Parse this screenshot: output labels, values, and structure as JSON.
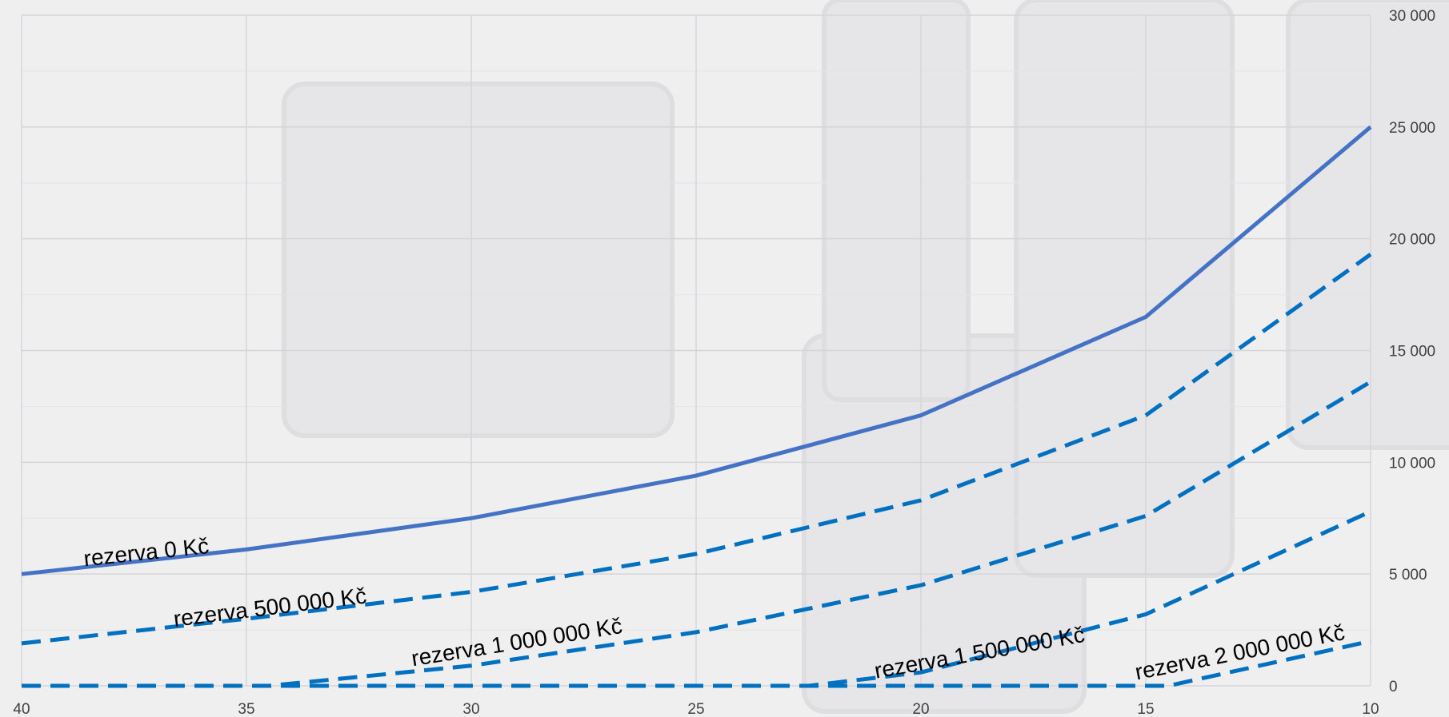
{
  "chart_data": {
    "type": "line",
    "x": [
      40,
      35,
      30,
      25,
      20,
      15,
      10
    ],
    "xlim": [
      40,
      10
    ],
    "x_reversed": true,
    "ylim": [
      0,
      30000
    ],
    "y_ticks": [
      0,
      5000,
      10000,
      15000,
      20000,
      25000,
      30000
    ],
    "y_tick_labels": [
      "0",
      "5 000",
      "10 000",
      "15 000",
      "20 000",
      "25 000",
      "30 000"
    ],
    "x_tick_labels": [
      "40",
      "35",
      "30",
      "25",
      "20",
      "15",
      "10"
    ],
    "y_axis_position": "right",
    "grid": true,
    "legend": "none",
    "series": [
      {
        "name": "rezerva 0 Kč",
        "style": "solid",
        "color": "#4472c4",
        "points": [
          [
            40,
            5000
          ],
          [
            35,
            6100
          ],
          [
            30,
            7500
          ],
          [
            25,
            9400
          ],
          [
            20,
            12100
          ],
          [
            15,
            16500
          ],
          [
            10,
            25000
          ]
        ]
      },
      {
        "name": "rezerva 500 000 Kč",
        "style": "dashed",
        "color": "#0070c0",
        "points": [
          [
            40,
            1900
          ],
          [
            35,
            3000
          ],
          [
            30,
            4200
          ],
          [
            25,
            5900
          ],
          [
            20,
            8300
          ],
          [
            15,
            12100
          ],
          [
            10,
            19300
          ]
        ]
      },
      {
        "name": "rezerva 1 000 000 Kč",
        "style": "dashed",
        "color": "#0070c0",
        "points": [
          [
            40,
            0
          ],
          [
            34.5,
            0
          ],
          [
            30,
            900
          ],
          [
            25,
            2400
          ],
          [
            20,
            4500
          ],
          [
            15,
            7600
          ],
          [
            10,
            13600
          ]
        ]
      },
      {
        "name": "rezerva 1 500 000 Kč",
        "style": "dashed",
        "color": "#0070c0",
        "points": [
          [
            40,
            0
          ],
          [
            25,
            0
          ],
          [
            22.5,
            0
          ],
          [
            20,
            600
          ],
          [
            15,
            3200
          ],
          [
            10,
            7800
          ]
        ]
      },
      {
        "name": "rezerva 2 000 000 Kč",
        "style": "dashed",
        "color": "#0070c0",
        "points": [
          [
            40,
            0
          ],
          [
            15,
            0
          ],
          [
            14.5,
            0
          ],
          [
            10,
            2000
          ]
        ]
      }
    ]
  }
}
